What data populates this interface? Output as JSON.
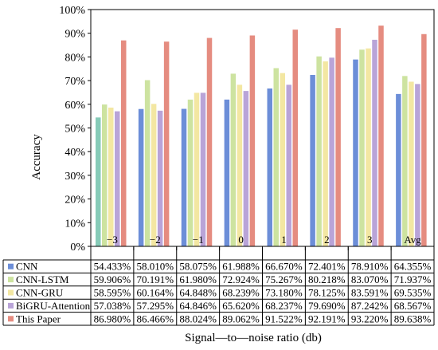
{
  "chart_data": {
    "type": "bar",
    "ylabel": "Accuracy",
    "xlabel": "Signal—to—noise ratio (db)",
    "categories": [
      "−3",
      "−2",
      "−1",
      "0",
      "1",
      "2",
      "3",
      "Avg"
    ],
    "ylim": [
      0,
      100
    ],
    "yticks": [
      "0%",
      "10%",
      "20%",
      "30%",
      "40%",
      "50%",
      "60%",
      "70%",
      "80%",
      "90%",
      "100%"
    ],
    "grid": false,
    "legend": "table-below",
    "series": [
      {
        "name": "CNN",
        "color": "#6c8ed8",
        "values": [
          54.433,
          58.01,
          58.075,
          61.988,
          66.67,
          72.401,
          78.91,
          64.355
        ],
        "labels": [
          "54.433%",
          "58.010%",
          "58.075%",
          "61.988%",
          "66.670%",
          "72.401%",
          "78.910%",
          "64.355%"
        ]
      },
      {
        "name": "CNN-LSTM",
        "color": "#cde3a0",
        "values": [
          59.906,
          70.191,
          61.98,
          72.924,
          75.267,
          80.218,
          83.07,
          71.937
        ],
        "labels": [
          "59.906%",
          "70.191%",
          "61.980%",
          "72.924%",
          "75.267%",
          "80.218%",
          "83.070%",
          "71.937%"
        ]
      },
      {
        "name": "CNN-GRU",
        "color": "#f3e7a2",
        "values": [
          58.595,
          60.164,
          64.848,
          68.239,
          73.18,
          78.125,
          83.591,
          69.535
        ],
        "labels": [
          "58.595%",
          "60.164%",
          "64.848%",
          "68.239%",
          "73.180%",
          "78.125%",
          "83.591%",
          "69.535%"
        ]
      },
      {
        "name": "BiGRU-Attention",
        "color": "#b9a4d8",
        "values": [
          57.038,
          57.295,
          64.846,
          65.62,
          68.237,
          79.69,
          87.242,
          68.567
        ],
        "labels": [
          "57.038%",
          "57.295%",
          "64.846%",
          "65.620%",
          "68.237%",
          "79.690%",
          "87.242%",
          "68.567%"
        ]
      },
      {
        "name": "This Paper",
        "color": "#e58c80",
        "values": [
          86.98,
          86.466,
          88.024,
          89.062,
          91.522,
          92.191,
          93.22,
          89.638
        ],
        "labels": [
          "86.980%",
          "86.466%",
          "88.024%",
          "89.062%",
          "91.522%",
          "92.191%",
          "93.220%",
          "89.638%"
        ]
      }
    ],
    "first_bar_color": "#86cbb8"
  }
}
